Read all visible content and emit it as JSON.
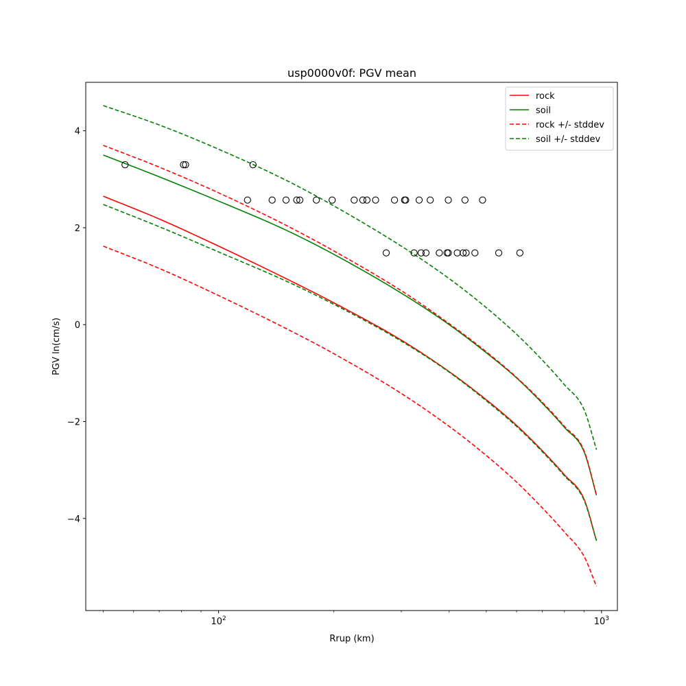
{
  "chart_data": {
    "type": "line",
    "title": "usp0000v0f: PGV mean",
    "xlabel": "Rrup (km)",
    "ylabel": "PGV ln(cm/s)",
    "xscale": "log",
    "xlim": [
      45,
      1100
    ],
    "ylim": [
      -5.9,
      5.0
    ],
    "x_ticks": [
      {
        "value": 100,
        "base": "10",
        "exp": "2"
      },
      {
        "value": 1000,
        "base": "10",
        "exp": "3"
      }
    ],
    "y_ticks": [
      {
        "value": -4,
        "label": "−4"
      },
      {
        "value": -2,
        "label": "−2"
      },
      {
        "value": 0,
        "label": "0"
      },
      {
        "value": 2,
        "label": "2"
      },
      {
        "value": 4,
        "label": "4"
      }
    ],
    "grid": false,
    "legend_position": "top-right",
    "series": [
      {
        "name": "rock",
        "color": "#ff0000",
        "style": "solid",
        "x": [
          50,
          70,
          100,
          150,
          200,
          300,
          400,
          500,
          600,
          700,
          800,
          900,
          970
        ],
        "y": [
          2.65,
          2.18,
          1.62,
          0.95,
          0.45,
          -0.32,
          -0.97,
          -1.55,
          -2.08,
          -2.6,
          -3.1,
          -3.6,
          -4.46
        ]
      },
      {
        "name": "soil",
        "color": "#008000",
        "style": "solid",
        "x": [
          50,
          70,
          100,
          150,
          200,
          300,
          400,
          500,
          600,
          700,
          800,
          900,
          970
        ],
        "y": [
          3.5,
          3.05,
          2.55,
          1.95,
          1.45,
          0.65,
          0.0,
          -0.58,
          -1.1,
          -1.62,
          -2.12,
          -2.62,
          -3.52
        ]
      },
      {
        "name": "rock +/- stddev",
        "color": "#ff0000",
        "style": "dashed",
        "x": [
          50,
          70,
          100,
          150,
          200,
          300,
          400,
          500,
          600,
          700,
          800,
          900,
          970
        ],
        "y": [
          3.7,
          3.25,
          2.72,
          2.05,
          1.52,
          0.7,
          0.02,
          -0.56,
          -1.09,
          -1.6,
          -2.1,
          -2.6,
          -3.52
        ]
      },
      {
        "name": "rock +/- stddev",
        "color": "#ff0000",
        "style": "dashed",
        "in_legend": false,
        "x": [
          50,
          70,
          100,
          150,
          200,
          300,
          400,
          500,
          600,
          700,
          800,
          900,
          970
        ],
        "y": [
          1.62,
          1.16,
          0.6,
          -0.08,
          -0.6,
          -1.42,
          -2.1,
          -2.7,
          -3.25,
          -3.78,
          -4.28,
          -4.78,
          -5.4
        ]
      },
      {
        "name": "soil +/- stddev",
        "color": "#008000",
        "style": "dashed",
        "x": [
          50,
          70,
          100,
          150,
          200,
          300,
          400,
          500,
          600,
          700,
          800,
          900,
          970
        ],
        "y": [
          4.52,
          4.12,
          3.62,
          2.98,
          2.45,
          1.62,
          0.95,
          0.35,
          -0.2,
          -0.73,
          -1.24,
          -1.75,
          -2.58
        ]
      },
      {
        "name": "soil +/- stddev",
        "color": "#008000",
        "style": "dashed",
        "in_legend": false,
        "x": [
          50,
          70,
          100,
          150,
          200,
          300,
          400,
          500,
          600,
          700,
          800,
          900,
          970
        ],
        "y": [
          2.48,
          2.02,
          1.5,
          0.9,
          0.42,
          -0.34,
          -0.98,
          -1.57,
          -2.1,
          -2.62,
          -3.12,
          -3.62,
          -4.46
        ]
      }
    ],
    "observations": {
      "marker": "open-circle",
      "color": "#000000",
      "points": [
        {
          "x": 57,
          "y": 3.3
        },
        {
          "x": 81,
          "y": 3.3
        },
        {
          "x": 82,
          "y": 3.3
        },
        {
          "x": 123,
          "y": 3.3
        },
        {
          "x": 119,
          "y": 2.57
        },
        {
          "x": 138,
          "y": 2.57
        },
        {
          "x": 150,
          "y": 2.57
        },
        {
          "x": 160,
          "y": 2.57
        },
        {
          "x": 163,
          "y": 2.57
        },
        {
          "x": 180,
          "y": 2.57
        },
        {
          "x": 198,
          "y": 2.57
        },
        {
          "x": 226,
          "y": 2.57
        },
        {
          "x": 238,
          "y": 2.57
        },
        {
          "x": 244,
          "y": 2.57
        },
        {
          "x": 257,
          "y": 2.57
        },
        {
          "x": 288,
          "y": 2.57
        },
        {
          "x": 306,
          "y": 2.57
        },
        {
          "x": 308,
          "y": 2.57
        },
        {
          "x": 334,
          "y": 2.57
        },
        {
          "x": 357,
          "y": 2.57
        },
        {
          "x": 398,
          "y": 2.57
        },
        {
          "x": 440,
          "y": 2.57
        },
        {
          "x": 489,
          "y": 2.57
        },
        {
          "x": 274,
          "y": 1.48
        },
        {
          "x": 324,
          "y": 1.48
        },
        {
          "x": 338,
          "y": 1.48
        },
        {
          "x": 348,
          "y": 1.48
        },
        {
          "x": 377,
          "y": 1.48
        },
        {
          "x": 395,
          "y": 1.48
        },
        {
          "x": 398,
          "y": 1.48
        },
        {
          "x": 420,
          "y": 1.48
        },
        {
          "x": 435,
          "y": 1.48
        },
        {
          "x": 443,
          "y": 1.48
        },
        {
          "x": 467,
          "y": 1.48
        },
        {
          "x": 539,
          "y": 1.48
        },
        {
          "x": 612,
          "y": 1.48
        }
      ]
    }
  }
}
